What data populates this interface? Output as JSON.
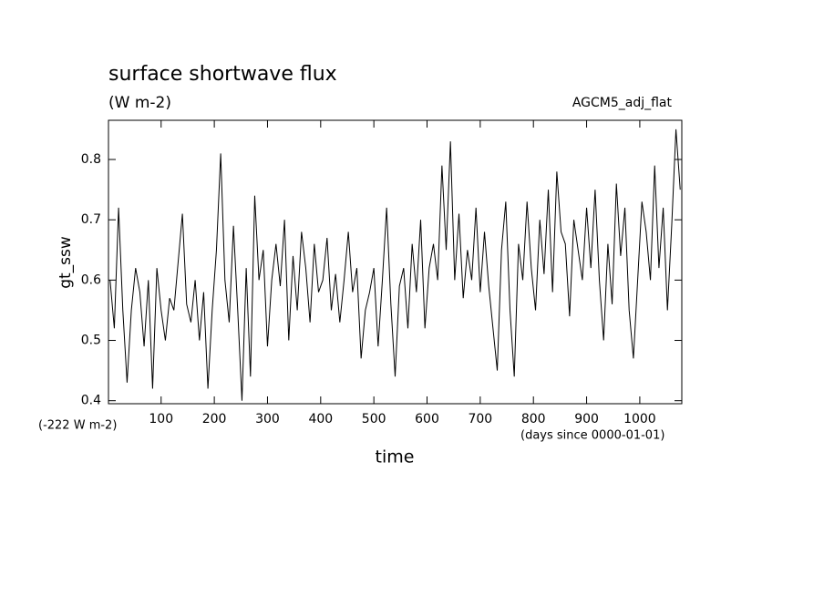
{
  "chart_data": {
    "type": "line",
    "title": "surface shortwave flux",
    "subtitle": "(W m-2)",
    "annotation": "AGCM5_adj_flat",
    "offset_label": "(-222 W m-2)",
    "x_units": "(days since 0000-01-01)",
    "x_label": "time",
    "y_label": "gt_ssw",
    "xlim": [
      1,
      1079
    ],
    "ylim": [
      0.395,
      0.865
    ],
    "xticks": [
      100,
      200,
      300,
      400,
      500,
      600,
      700,
      800,
      900,
      1000
    ],
    "yticks": [
      0.4,
      0.5,
      0.6,
      0.7,
      0.8
    ],
    "x": [
      4,
      12,
      20,
      28,
      36,
      44,
      52,
      60,
      68,
      76,
      84,
      92,
      100,
      108,
      116,
      124,
      132,
      140,
      148,
      156,
      164,
      172,
      180,
      188,
      196,
      204,
      212,
      220,
      228,
      236,
      244,
      252,
      260,
      268,
      276,
      284,
      292,
      300,
      308,
      316,
      324,
      332,
      340,
      348,
      356,
      364,
      372,
      380,
      388,
      396,
      404,
      412,
      420,
      428,
      436,
      444,
      452,
      460,
      468,
      476,
      484,
      492,
      500,
      508,
      516,
      524,
      532,
      540,
      548,
      556,
      564,
      572,
      580,
      588,
      596,
      604,
      612,
      620,
      628,
      636,
      644,
      652,
      660,
      668,
      676,
      684,
      692,
      700,
      708,
      716,
      724,
      732,
      740,
      748,
      756,
      764,
      772,
      780,
      788,
      796,
      804,
      812,
      820,
      828,
      836,
      844,
      852,
      860,
      868,
      876,
      884,
      892,
      900,
      908,
      916,
      924,
      932,
      940,
      948,
      956,
      964,
      972,
      980,
      988,
      996,
      1004,
      1012,
      1020,
      1028,
      1036,
      1044,
      1052,
      1060,
      1068,
      1076
    ],
    "series": [
      {
        "color": "#000000",
        "values": [
          0.6,
          0.52,
          0.72,
          0.55,
          0.43,
          0.55,
          0.62,
          0.58,
          0.49,
          0.6,
          0.42,
          0.62,
          0.55,
          0.5,
          0.57,
          0.55,
          0.63,
          0.71,
          0.56,
          0.53,
          0.6,
          0.5,
          0.58,
          0.42,
          0.55,
          0.65,
          0.81,
          0.6,
          0.53,
          0.69,
          0.55,
          0.4,
          0.62,
          0.44,
          0.74,
          0.6,
          0.65,
          0.49,
          0.6,
          0.66,
          0.59,
          0.7,
          0.5,
          0.64,
          0.55,
          0.68,
          0.62,
          0.53,
          0.66,
          0.58,
          0.6,
          0.67,
          0.55,
          0.61,
          0.53,
          0.6,
          0.68,
          0.58,
          0.62,
          0.47,
          0.55,
          0.58,
          0.62,
          0.49,
          0.6,
          0.72,
          0.56,
          0.44,
          0.59,
          0.62,
          0.52,
          0.66,
          0.58,
          0.7,
          0.52,
          0.62,
          0.66,
          0.6,
          0.79,
          0.65,
          0.83,
          0.6,
          0.71,
          0.57,
          0.65,
          0.6,
          0.72,
          0.58,
          0.68,
          0.59,
          0.52,
          0.45,
          0.65,
          0.73,
          0.55,
          0.44,
          0.66,
          0.6,
          0.73,
          0.62,
          0.55,
          0.7,
          0.61,
          0.75,
          0.58,
          0.78,
          0.68,
          0.66,
          0.54,
          0.7,
          0.65,
          0.6,
          0.72,
          0.62,
          0.75,
          0.6,
          0.5,
          0.66,
          0.56,
          0.76,
          0.64,
          0.72,
          0.55,
          0.47,
          0.6,
          0.73,
          0.68,
          0.6,
          0.79,
          0.62,
          0.72,
          0.55,
          0.69,
          0.85,
          0.75
        ]
      }
    ]
  }
}
